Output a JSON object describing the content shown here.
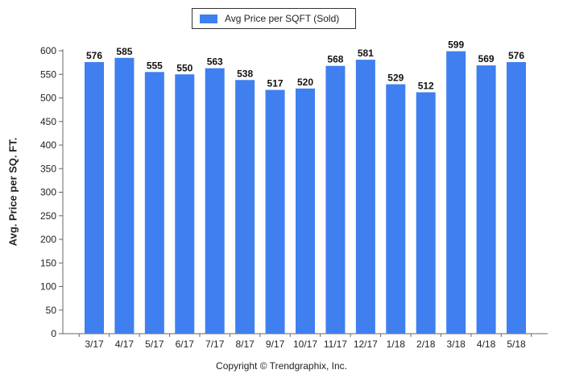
{
  "chart_data": {
    "type": "bar",
    "title": "",
    "xlabel": "",
    "ylabel": "Avg. Price per SQ. FT.",
    "categories": [
      "3/17",
      "4/17",
      "5/17",
      "6/17",
      "7/17",
      "8/17",
      "9/17",
      "10/17",
      "11/17",
      "12/17",
      "1/18",
      "2/18",
      "3/18",
      "4/18",
      "5/18"
    ],
    "series": [
      {
        "name": "Avg Price per SQFT (Sold)",
        "values": [
          576,
          585,
          555,
          550,
          563,
          538,
          517,
          520,
          568,
          581,
          529,
          512,
          599,
          569,
          576
        ],
        "color": "#3f7ff0"
      }
    ],
    "ylim": [
      0,
      600
    ],
    "yticks": [
      0,
      50,
      100,
      150,
      200,
      250,
      300,
      350,
      400,
      450,
      500,
      550,
      600
    ],
    "grid": false,
    "legend": "top-center",
    "show_data_labels": true
  },
  "footer": "Copyright © Trendgraphix, Inc."
}
